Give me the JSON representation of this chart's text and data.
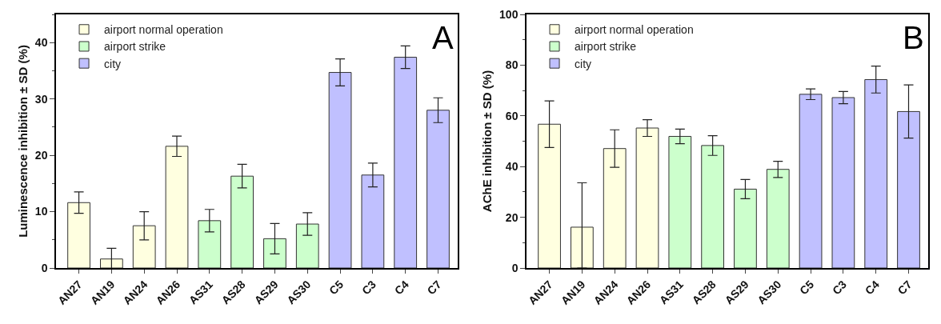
{
  "chart_data": [
    {
      "type": "bar",
      "ylabel": "Luminescence inhibition ± SD (%)",
      "annotations": [
        "A"
      ],
      "legend": "top left",
      "grid": false,
      "categories": [
        "AN27",
        "AN19",
        "AN24",
        "AN26",
        "AS31",
        "AS28",
        "AS29",
        "AS30",
        "C5",
        "C3",
        "C4",
        "C7"
      ],
      "ylim": [
        0,
        45
      ],
      "yticks": [
        0,
        10,
        20,
        30,
        40
      ],
      "series": [
        {
          "name": "airport normal operation",
          "color": "#ffffe0",
          "values": [
            11.6,
            1.6,
            7.5,
            21.6,
            null,
            null,
            null,
            null,
            null,
            null,
            null,
            null
          ],
          "errors": [
            1.9,
            1.9,
            2.5,
            1.8,
            null,
            null,
            null,
            null,
            null,
            null,
            null,
            null
          ]
        },
        {
          "name": "airport strike",
          "color": "#ccffcc",
          "values": [
            null,
            null,
            null,
            null,
            8.4,
            16.3,
            5.2,
            7.8,
            null,
            null,
            null,
            null
          ],
          "errors": [
            null,
            null,
            null,
            null,
            2.0,
            2.1,
            2.7,
            2.0,
            null,
            null,
            null,
            null
          ]
        },
        {
          "name": "city",
          "color": "#c0c0ff",
          "values": [
            null,
            null,
            null,
            null,
            null,
            null,
            null,
            null,
            34.7,
            16.5,
            37.4,
            28.0
          ],
          "errors": [
            null,
            null,
            null,
            null,
            null,
            null,
            null,
            null,
            2.4,
            2.1,
            2.0,
            2.2
          ]
        }
      ]
    },
    {
      "type": "bar",
      "ylabel": "AChE inhibition ± SD (%)",
      "annotations": [
        "B"
      ],
      "legend": "top left",
      "grid": false,
      "categories": [
        "AN27",
        "AN19",
        "AN24",
        "AN26",
        "AS31",
        "AS28",
        "AS29",
        "AS30",
        "C5",
        "C3",
        "C4",
        "C7"
      ],
      "ylim": [
        0,
        100
      ],
      "yticks": [
        0,
        20,
        40,
        60,
        80,
        100
      ],
      "series": [
        {
          "name": "airport normal operation",
          "color": "#ffffe0",
          "values": [
            56.7,
            16.1,
            47.1,
            55.2,
            null,
            null,
            null,
            null,
            null,
            null,
            null,
            null
          ],
          "errors": [
            9.2,
            [
              0,
              33.6
            ],
            7.4,
            3.3,
            null,
            null,
            null,
            null,
            null,
            null,
            null,
            null
          ]
        },
        {
          "name": "airport strike",
          "color": "#ccffcc",
          "values": [
            null,
            null,
            null,
            null,
            51.9,
            48.3,
            31.1,
            38.9,
            null,
            null,
            null,
            null
          ],
          "errors": [
            null,
            null,
            null,
            null,
            2.9,
            3.9,
            3.8,
            3.2,
            null,
            null,
            null,
            null
          ]
        },
        {
          "name": "city",
          "color": "#c0c0ff",
          "values": [
            null,
            null,
            null,
            null,
            null,
            null,
            null,
            null,
            68.5,
            67.2,
            74.3,
            61.7
          ],
          "errors": [
            null,
            null,
            null,
            null,
            null,
            null,
            null,
            null,
            2.1,
            2.4,
            5.3,
            10.5
          ]
        }
      ]
    }
  ]
}
